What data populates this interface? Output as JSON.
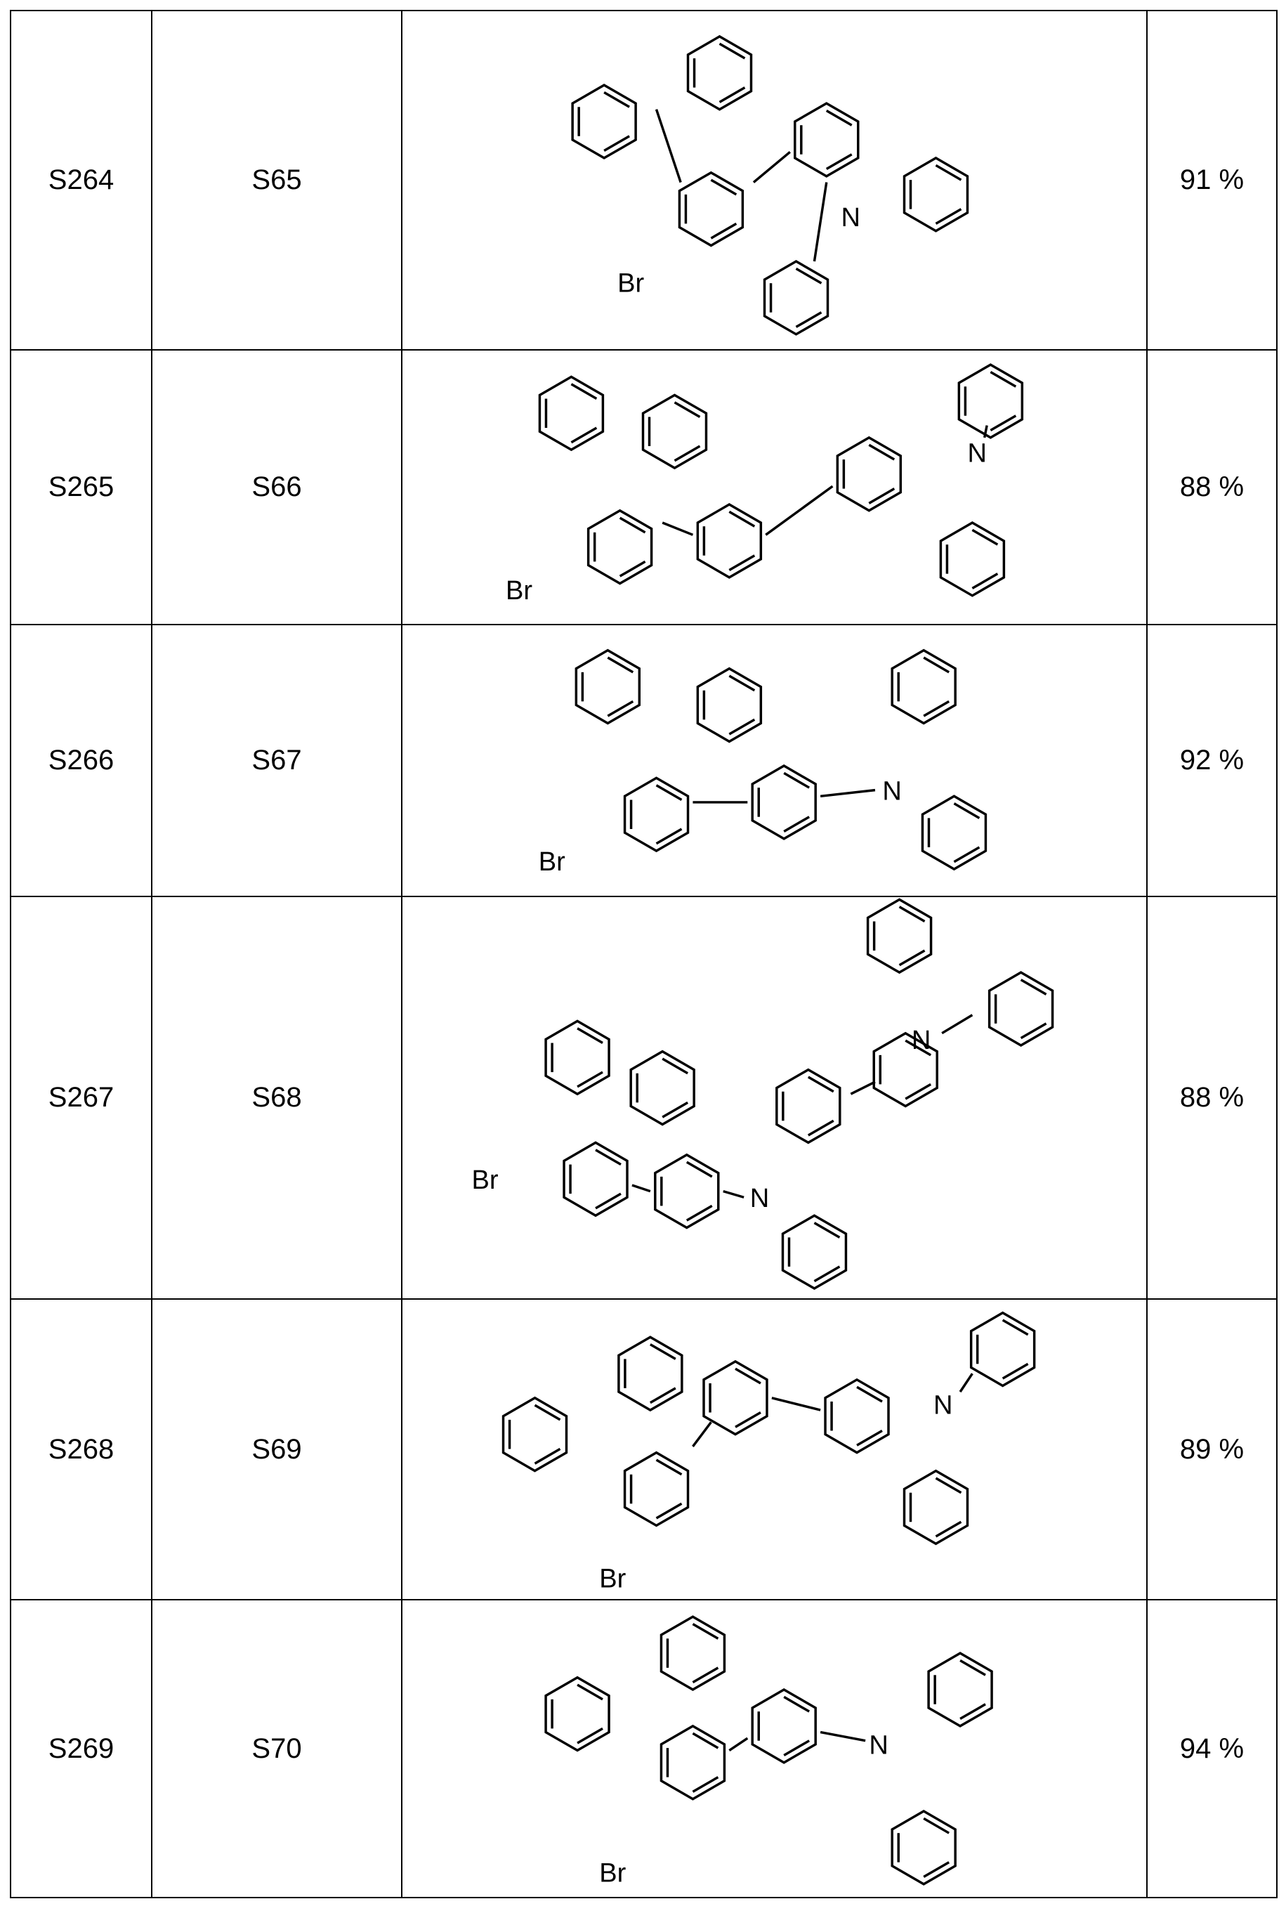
{
  "table": {
    "rows": [
      {
        "product": "S264",
        "reactant": "S65",
        "yield": "91 %",
        "structure_labels": [
          "Br",
          "N"
        ]
      },
      {
        "product": "S265",
        "reactant": "S66",
        "yield": "88 %",
        "structure_labels": [
          "Br",
          "N"
        ]
      },
      {
        "product": "S266",
        "reactant": "S67",
        "yield": "92 %",
        "structure_labels": [
          "Br",
          "N"
        ]
      },
      {
        "product": "S267",
        "reactant": "S68",
        "yield": "88 %",
        "structure_labels": [
          "Br",
          "N",
          "N"
        ]
      },
      {
        "product": "S268",
        "reactant": "S69",
        "yield": "89 %",
        "structure_labels": [
          "Br",
          "N"
        ]
      },
      {
        "product": "S269",
        "reactant": "S70",
        "yield": "94 %",
        "structure_labels": [
          "Br",
          "N"
        ]
      }
    ]
  }
}
